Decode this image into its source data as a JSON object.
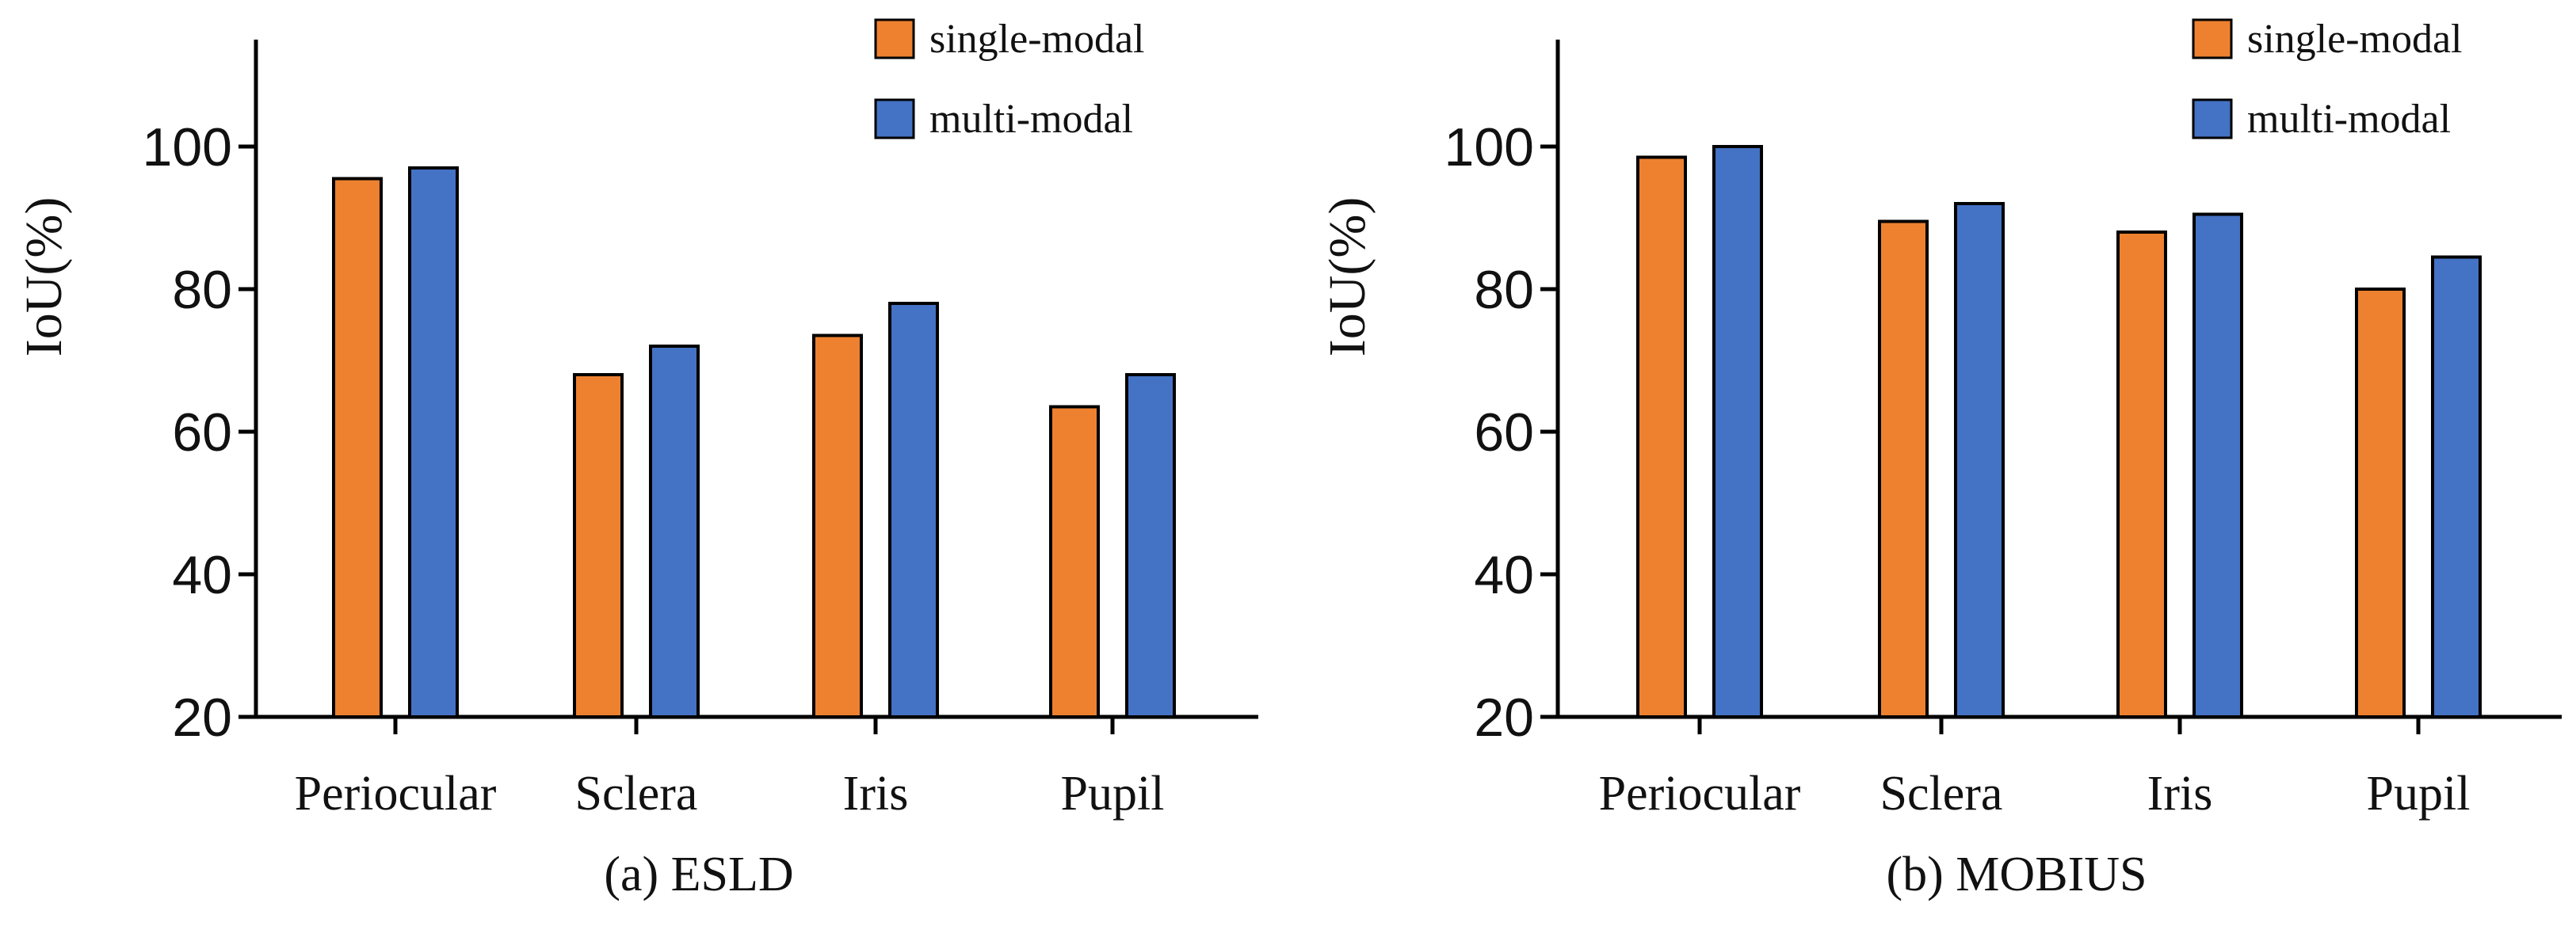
{
  "chart_data": [
    {
      "type": "bar",
      "caption": "(a) ESLD",
      "ylabel": "IoU(%)",
      "ylim": [
        20,
        115
      ],
      "yticks": [
        20,
        40,
        60,
        80,
        100
      ],
      "categories": [
        "Periocular",
        "Sclera",
        "Iris",
        "Pupil"
      ],
      "legend_position": "top-right",
      "series": [
        {
          "name": "single-modal",
          "color": "#ED8130",
          "values": [
            95.5,
            68,
            73.5,
            63.5
          ]
        },
        {
          "name": "multi-modal",
          "color": "#4472C4",
          "values": [
            97,
            72,
            78,
            68
          ]
        }
      ]
    },
    {
      "type": "bar",
      "caption": "(b) MOBIUS",
      "ylabel": "IoU(%)",
      "ylim": [
        20,
        115
      ],
      "yticks": [
        20,
        40,
        60,
        80,
        100
      ],
      "categories": [
        "Periocular",
        "Sclera",
        "Iris",
        "Pupil"
      ],
      "legend_position": "top-right",
      "series": [
        {
          "name": "single-modal",
          "color": "#ED8130",
          "values": [
            98.5,
            89.5,
            88,
            80
          ]
        },
        {
          "name": "multi-modal",
          "color": "#4472C4",
          "values": [
            100,
            92,
            90.5,
            84.5
          ]
        }
      ]
    }
  ]
}
